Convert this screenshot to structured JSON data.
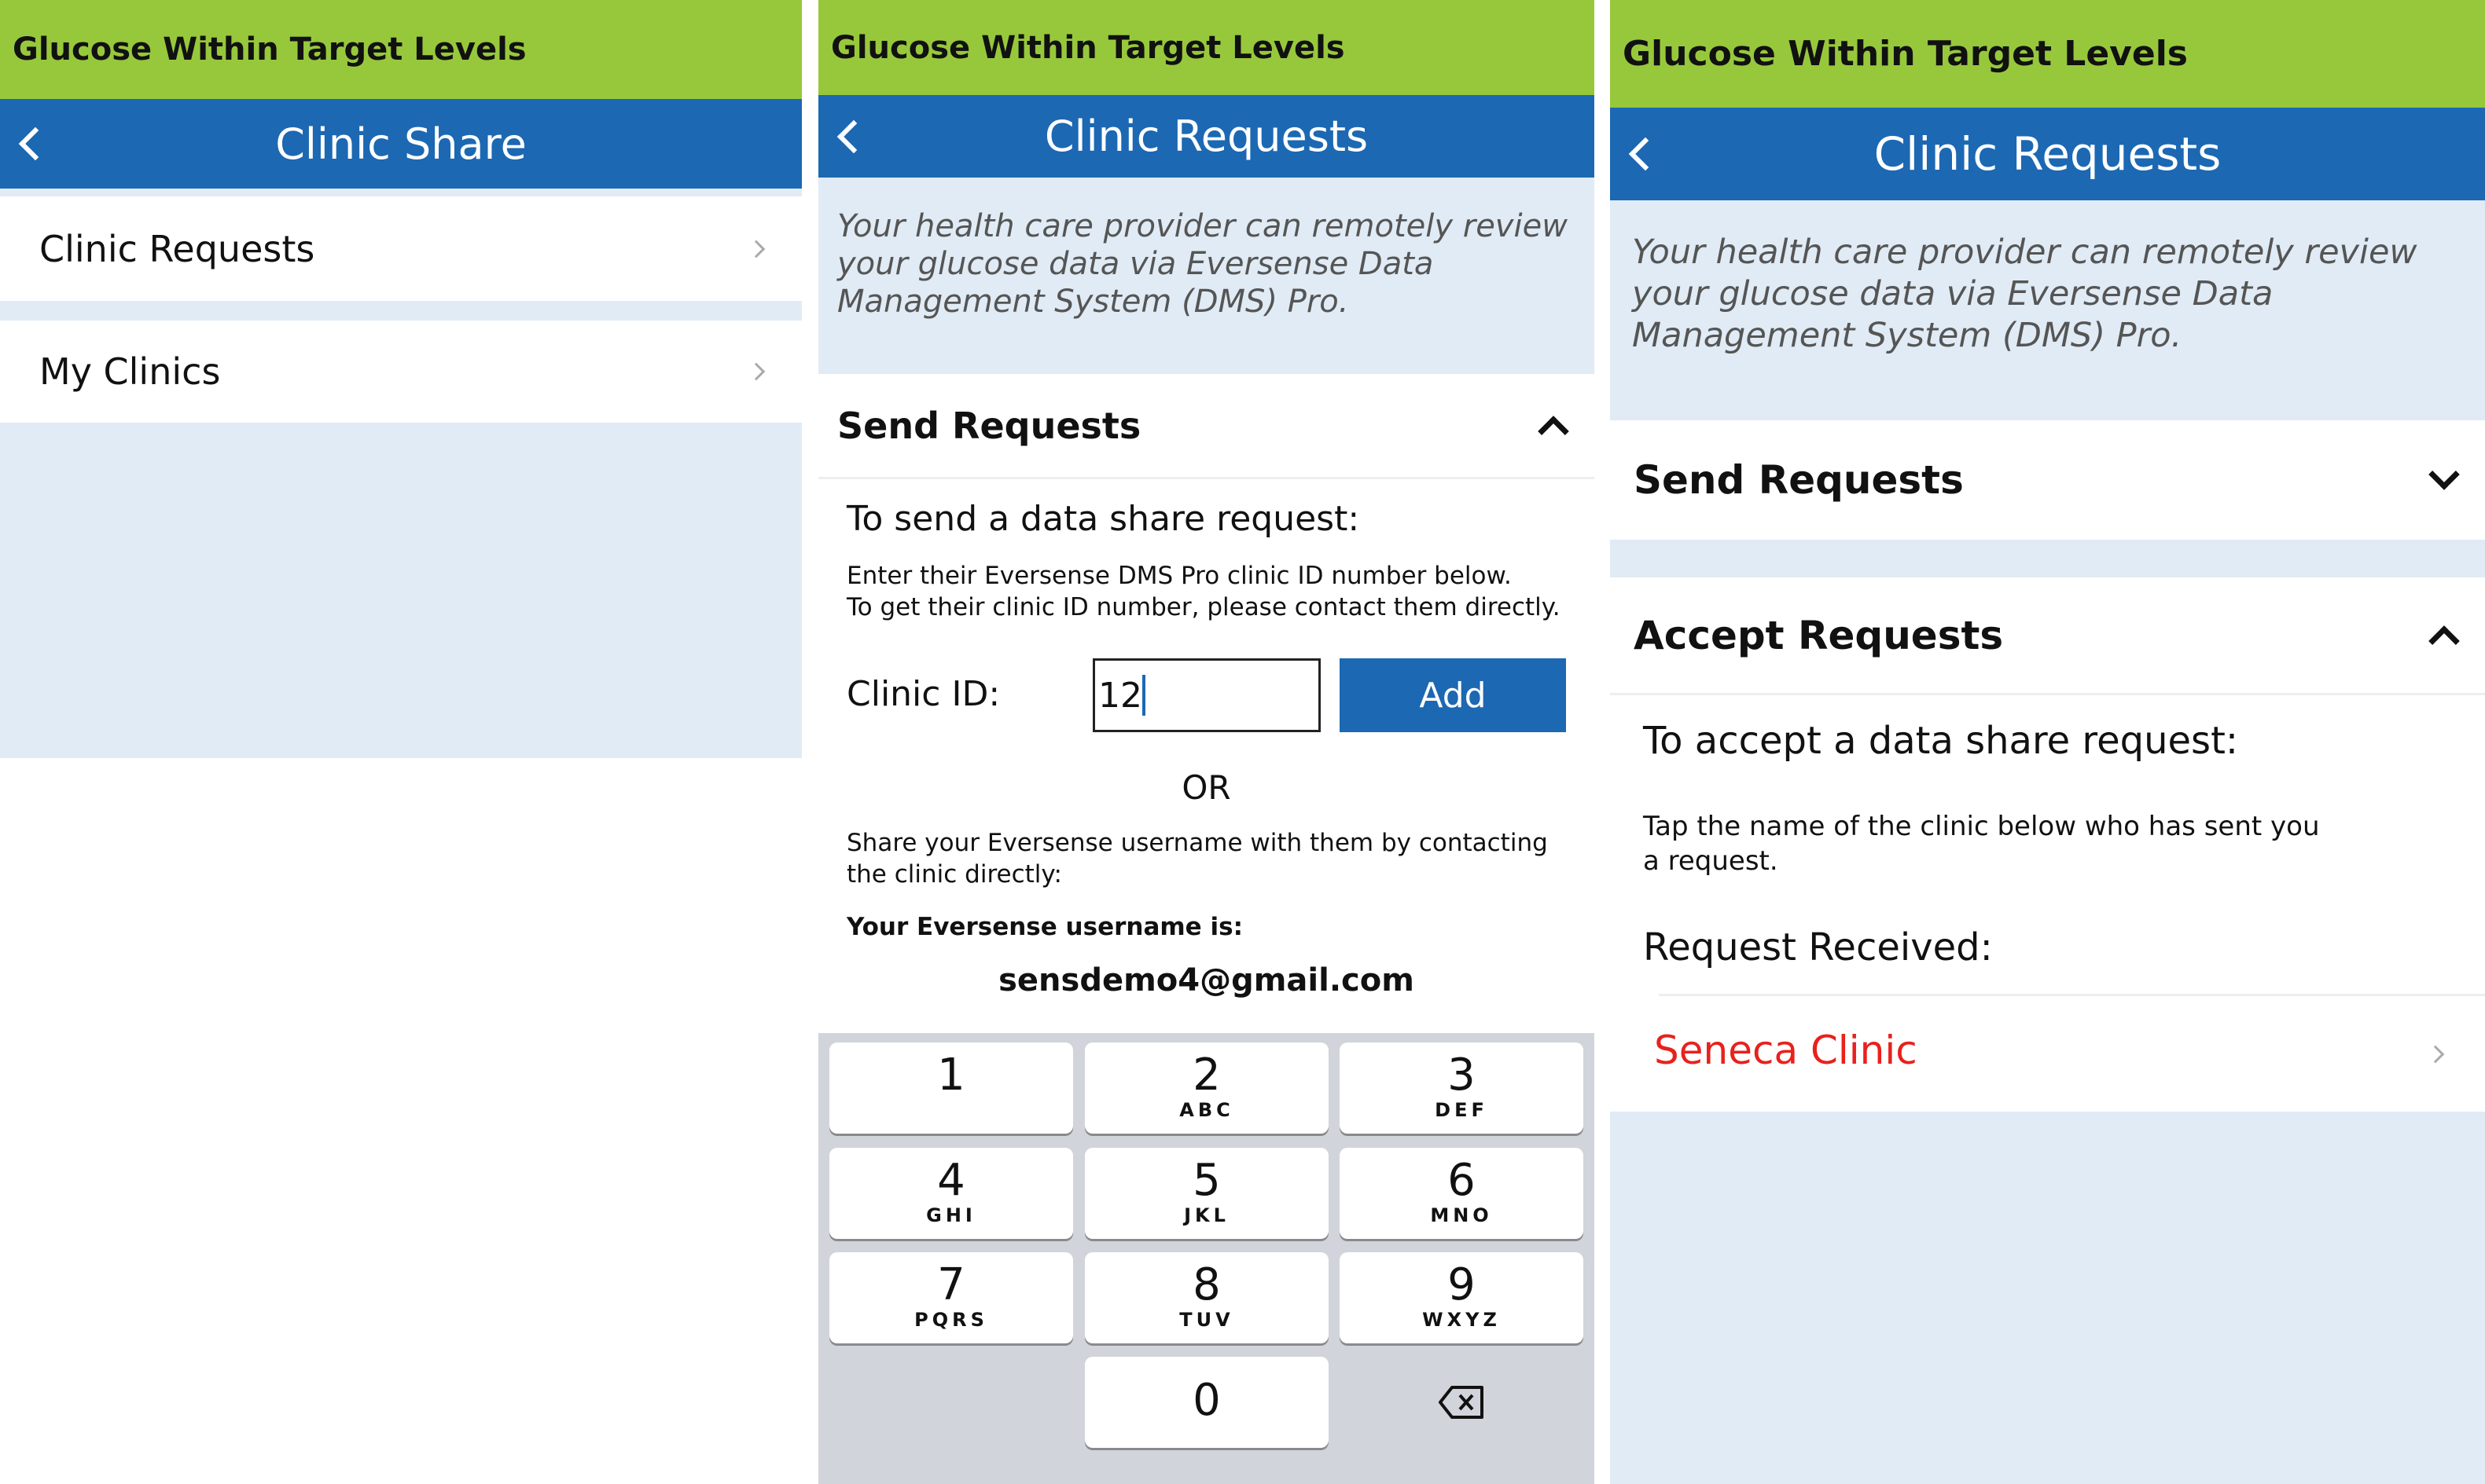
{
  "banner": "Glucose Within Target Levels",
  "panel1": {
    "title": "Clinic Share",
    "items": [
      {
        "label": "Clinic Requests"
      },
      {
        "label": "My Clinics"
      }
    ]
  },
  "panel2": {
    "title": "Clinic Requests",
    "info": "Your health care provider can remotely review your glucose data via Eversense Data Management System (DMS) Pro.",
    "section": "Send Requests",
    "heading": "To send a data share request:",
    "instr1": "Enter their Eversense DMS Pro clinic ID number below.",
    "instr2": "To get their clinic ID number, please contact them directly.",
    "clinic_id_label": "Clinic ID:",
    "clinic_id_value": "12",
    "add_label": "Add",
    "or": "OR",
    "share1": "Share your Eversense username with them by contacting",
    "share2": "the clinic directly:",
    "username_label": "Your Eversense username is:",
    "username": "sensdemo4@gmail.com",
    "keys": [
      {
        "n": "1",
        "l": ""
      },
      {
        "n": "2",
        "l": "ABC"
      },
      {
        "n": "3",
        "l": "DEF"
      },
      {
        "n": "4",
        "l": "GHI"
      },
      {
        "n": "5",
        "l": "JKL"
      },
      {
        "n": "6",
        "l": "MNO"
      },
      {
        "n": "7",
        "l": "PQRS"
      },
      {
        "n": "8",
        "l": "TUV"
      },
      {
        "n": "9",
        "l": "WXYZ"
      },
      {
        "n": "0",
        "l": ""
      }
    ]
  },
  "panel3": {
    "title": "Clinic Requests",
    "info": "Your health care provider can remotely review your glucose data via Eversense Data Management System (DMS) Pro.",
    "send_section": "Send Requests",
    "accept_section": "Accept Requests",
    "heading": "To accept a data share request:",
    "tap1": "Tap the name of the clinic below who has sent you",
    "tap2": "a request.",
    "received_label": "Request Received:",
    "clinic": "Seneca Clinic"
  },
  "colors": {
    "banner": "#97c83c",
    "nav": "#1c68b3",
    "clinic_red": "#e8211c"
  }
}
